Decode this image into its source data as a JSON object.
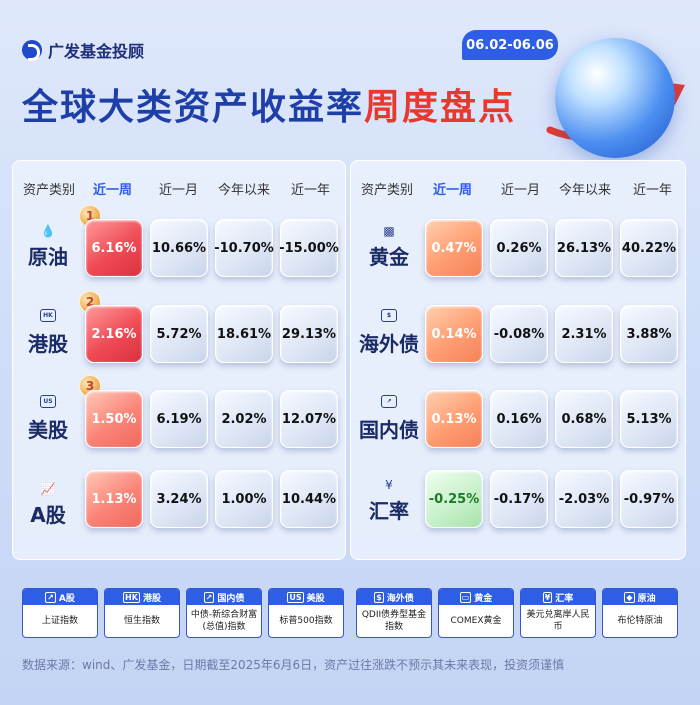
{
  "brand": {
    "name": "广发基金投顾"
  },
  "date_range": "06.02-06.06",
  "title": {
    "part1": "全球大类资产收益率",
    "part2": "周度盘点"
  },
  "headers": [
    "资产类别",
    "近一周",
    "近一月",
    "今年以来",
    "近一年"
  ],
  "left_rows": [
    {
      "icon": "droplet-icon",
      "icon_text": "💧",
      "name": "原油",
      "rank": "1",
      "values": [
        "6.16%",
        "10.66%",
        "-10.70%",
        "-15.00%"
      ]
    },
    {
      "icon": "hk-icon",
      "icon_text": "HK",
      "name": "港股",
      "rank": "2",
      "values": [
        "2.16%",
        "5.72%",
        "18.61%",
        "29.13%"
      ]
    },
    {
      "icon": "us-icon",
      "icon_text": "US",
      "name": "美股",
      "rank": "3",
      "values": [
        "1.50%",
        "6.19%",
        "2.02%",
        "12.07%"
      ]
    },
    {
      "icon": "chart-icon",
      "icon_text": "📈",
      "name": "A股",
      "rank": "",
      "values": [
        "1.13%",
        "3.24%",
        "1.00%",
        "10.44%"
      ]
    }
  ],
  "right_rows": [
    {
      "icon": "gold-icon",
      "icon_text": "🏅",
      "name": "黄金",
      "values": [
        "0.47%",
        "0.26%",
        "26.13%",
        "40.22%"
      ]
    },
    {
      "icon": "dollar-icon",
      "icon_text": "$",
      "name": "海外债",
      "values": [
        "0.14%",
        "-0.08%",
        "2.31%",
        "3.88%"
      ]
    },
    {
      "icon": "bond-icon",
      "icon_text": "📄",
      "name": "国内债",
      "values": [
        "0.13%",
        "0.16%",
        "0.68%",
        "5.13%"
      ]
    },
    {
      "icon": "yen-icon",
      "icon_text": "¥",
      "name": "汇率",
      "values": [
        "-0.25%",
        "-0.17%",
        "-2.03%",
        "-0.97%"
      ]
    }
  ],
  "legend": [
    {
      "icon": "chart-icon",
      "icon_text": "📈",
      "head": "A股",
      "body": "上证指数"
    },
    {
      "icon": "hk-icon",
      "icon_text": "HK",
      "head": "港股",
      "body": "恒生指数"
    },
    {
      "icon": "bond-icon",
      "icon_text": "▤",
      "head": "国内债",
      "body": "中债-新综合财富(总值)指数"
    },
    {
      "icon": "us-icon",
      "icon_text": "US",
      "head": "美股",
      "body": "标普500指数"
    },
    {
      "icon": "dollar-icon",
      "icon_text": "$",
      "head": "海外债",
      "body": "QDII债券型基金指数"
    },
    {
      "icon": "gold-icon",
      "icon_text": "▭",
      "head": "黄金",
      "body": "COMEX黄金"
    },
    {
      "icon": "yen-icon",
      "icon_text": "¥",
      "head": "汇率",
      "body": "美元兑离岸人民币"
    },
    {
      "icon": "droplet-icon",
      "icon_text": "◆",
      "head": "原油",
      "body": "布伦特原油"
    }
  ],
  "source": "数据来源：wind、广发基金，日期截至2025年6月6日，资产过往涨跌不预示其未来表现，投资须谨慎",
  "colors": {
    "accent": "#2e5ee6",
    "title_red": "#e8392f",
    "up_red": "#ef4a55",
    "up_orange": "#ff9d72",
    "down_green": "#a8e2ad"
  }
}
